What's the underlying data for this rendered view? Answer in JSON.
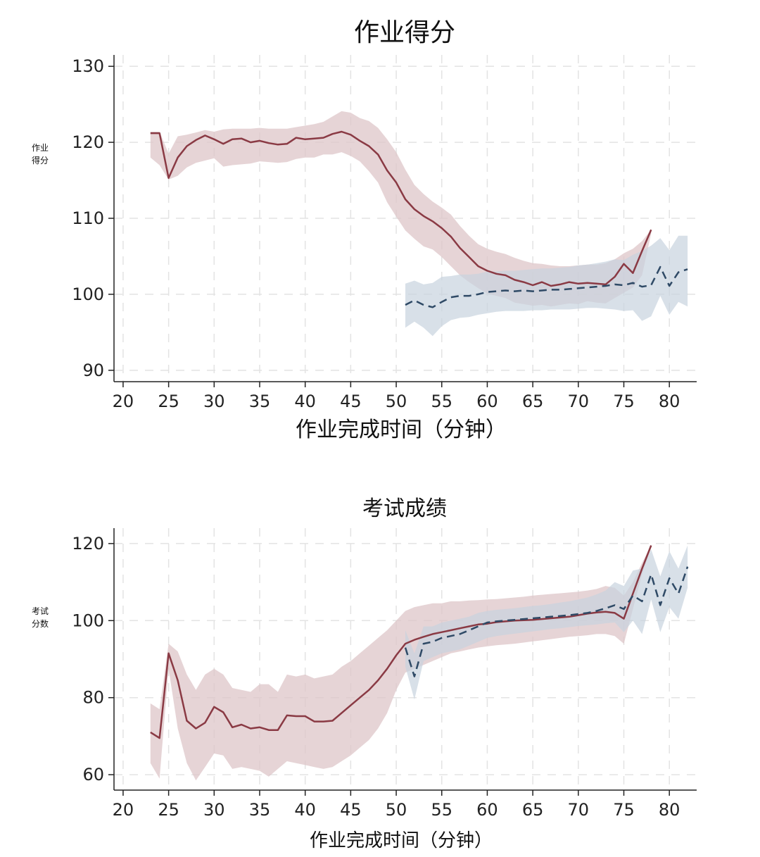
{
  "chart_data": [
    {
      "type": "line",
      "title": "作业得分",
      "ylabel_lines": [
        "作业",
        "得分"
      ],
      "xlabel": "作业完成时间（分钟）",
      "xlim": [
        19,
        83
      ],
      "ylim": [
        88.5,
        131.5
      ],
      "xticks": [
        20,
        25,
        30,
        35,
        40,
        45,
        50,
        55,
        60,
        65,
        70,
        75,
        80
      ],
      "yticks": [
        90,
        100,
        110,
        120,
        130
      ],
      "colors": {
        "series_a": "#8a3a44",
        "series_a_band": "#ddc6c8",
        "series_b": "#2f4a66",
        "series_b_band": "#c7d3de"
      },
      "series": [
        {
          "style": "solid",
          "x": [
            23,
            24,
            25,
            26,
            27,
            28,
            29,
            30,
            31,
            32,
            33,
            34,
            35,
            36,
            37,
            38,
            39,
            40,
            41,
            42,
            43,
            44,
            45,
            46,
            47,
            48,
            49,
            50,
            51,
            52,
            53,
            54,
            55,
            56,
            57,
            58,
            59,
            60,
            61,
            62,
            63,
            64,
            65,
            66,
            67,
            68,
            69,
            70,
            71,
            72,
            73,
            74,
            75,
            76,
            77,
            78
          ],
          "y": [
            121.2,
            121.2,
            115.3,
            118,
            119.5,
            120.3,
            120.9,
            120.4,
            119.8,
            120.4,
            120.5,
            120.0,
            120.2,
            119.9,
            119.7,
            119.8,
            120.6,
            120.4,
            120.5,
            120.6,
            121.1,
            121.4,
            121.0,
            120.2,
            119.5,
            118.4,
            116.3,
            114.7,
            112.5,
            111.2,
            110.3,
            109.6,
            108.7,
            107.6,
            106.1,
            104.9,
            103.7,
            103.1,
            102.7,
            102.5,
            101.9,
            101.6,
            101.2,
            101.6,
            101.1,
            101.3,
            101.6,
            101.4,
            101.5,
            101.4,
            101.3,
            102.3,
            104.0,
            102.8,
            105.7,
            108.5
          ],
          "upper": [
            121.4,
            121.4,
            118.5,
            120.8,
            121.0,
            121.3,
            121.6,
            121.4,
            121.7,
            121.8,
            121.8,
            121.8,
            121.9,
            121.8,
            121.8,
            121.8,
            122.0,
            122.2,
            122.4,
            122.7,
            123.4,
            124.1,
            123.9,
            123.2,
            122.8,
            121.9,
            120.4,
            118.7,
            116.4,
            114.4,
            113.2,
            112.2,
            111.4,
            110.5,
            109.0,
            107.7,
            106.6,
            106.0,
            105.6,
            105.3,
            104.8,
            104.4,
            104.1,
            104.0,
            103.8,
            103.7,
            103.7,
            103.8,
            103.9,
            103.9,
            104.1,
            104.6,
            105.4,
            106.0,
            107.0,
            108.5
          ],
          "lower": [
            118.0,
            117.0,
            115.1,
            115.6,
            116.7,
            117.3,
            117.6,
            117.9,
            116.8,
            117.0,
            117.1,
            117.2,
            117.5,
            117.4,
            117.3,
            117.4,
            117.8,
            118.0,
            118.0,
            118.4,
            118.4,
            118.7,
            118.2,
            117.5,
            116.2,
            114.7,
            112.1,
            110.2,
            108.4,
            107.3,
            106.3,
            105.9,
            104.9,
            103.7,
            102.5,
            101.6,
            100.8,
            100.1,
            99.8,
            99.5,
            98.9,
            98.7,
            98.5,
            98.6,
            98.4,
            98.6,
            98.8,
            98.7,
            99.1,
            98.9,
            98.8,
            99.5,
            100.2,
            100.9,
            102.5,
            108.0
          ]
        },
        {
          "style": "dashed",
          "x": [
            51,
            52,
            53,
            54,
            55,
            56,
            57,
            58,
            59,
            60,
            61,
            62,
            63,
            64,
            65,
            66,
            67,
            68,
            69,
            70,
            71,
            72,
            73,
            74,
            75,
            76,
            77,
            78,
            79,
            80,
            81,
            82
          ],
          "y": [
            98.6,
            99.2,
            98.6,
            98.3,
            99.0,
            99.6,
            99.8,
            99.8,
            100.0,
            100.3,
            100.4,
            100.5,
            100.4,
            100.5,
            100.4,
            100.5,
            100.6,
            100.6,
            100.7,
            100.8,
            100.9,
            101.0,
            101.1,
            101.3,
            101.2,
            101.5,
            101.0,
            101.2,
            103.6,
            101.1,
            102.9,
            103.3
          ],
          "upper": [
            101.4,
            101.8,
            101.3,
            101.5,
            102.3,
            102.4,
            102.6,
            102.6,
            102.7,
            103.0,
            103.0,
            103.1,
            103.1,
            103.2,
            103.3,
            103.4,
            103.4,
            103.5,
            103.6,
            103.8,
            103.9,
            104.1,
            104.3,
            104.6,
            104.5,
            105.2,
            105.7,
            106.4,
            107.4,
            105.8,
            107.7,
            107.7
          ],
          "lower": [
            95.6,
            96.4,
            95.6,
            94.5,
            95.8,
            96.6,
            96.9,
            97.0,
            97.3,
            97.5,
            97.7,
            97.8,
            97.8,
            97.8,
            97.9,
            97.9,
            98.0,
            98.0,
            98.0,
            98.1,
            98.2,
            98.2,
            98.1,
            98.0,
            97.8,
            97.9,
            96.5,
            97.1,
            99.8,
            97.3,
            99.0,
            98.4
          ]
        }
      ]
    },
    {
      "type": "line",
      "title": "考试成绩",
      "ylabel_lines": [
        "考试",
        "分数"
      ],
      "xlabel": "作业完成时间（分钟）",
      "xlim": [
        19,
        83
      ],
      "ylim": [
        56,
        124
      ],
      "xticks": [
        20,
        25,
        30,
        35,
        40,
        45,
        50,
        55,
        60,
        65,
        70,
        75,
        80
      ],
      "yticks": [
        60,
        80,
        100,
        120
      ],
      "colors": {
        "series_a": "#8a3a44",
        "series_a_band": "#ddc6c8",
        "series_b": "#2f4a66",
        "series_b_band": "#c7d3de"
      },
      "series": [
        {
          "style": "solid",
          "x": [
            23,
            24,
            25,
            26,
            27,
            28,
            29,
            30,
            31,
            32,
            33,
            34,
            35,
            36,
            37,
            38,
            39,
            40,
            41,
            42,
            43,
            44,
            45,
            46,
            47,
            48,
            49,
            50,
            51,
            52,
            53,
            54,
            55,
            56,
            57,
            58,
            59,
            60,
            61,
            62,
            63,
            64,
            65,
            66,
            67,
            68,
            69,
            70,
            71,
            72,
            73,
            74,
            75,
            76,
            77,
            78
          ],
          "y": [
            71.0,
            69.5,
            91.5,
            84.5,
            74.0,
            72.0,
            73.5,
            77.6,
            76.2,
            72.3,
            73.0,
            72.0,
            72.3,
            71.6,
            71.6,
            75.4,
            75.2,
            75.2,
            73.8,
            73.8,
            74.0,
            76.0,
            78.0,
            80.0,
            82.0,
            84.5,
            87.5,
            91.0,
            94.0,
            95.0,
            95.8,
            96.5,
            97.0,
            97.5,
            98.0,
            98.5,
            99.0,
            99.2,
            99.6,
            99.8,
            100.0,
            100.1,
            100.2,
            100.4,
            100.6,
            100.8,
            101.0,
            101.4,
            101.8,
            102.1,
            102.3,
            102.0,
            100.5,
            107.0,
            113.5,
            119.5
          ],
          "upper": [
            78.5,
            77.0,
            94.0,
            92.0,
            86.0,
            82.0,
            86.0,
            87.5,
            86.0,
            82.5,
            82.0,
            81.5,
            83.5,
            83.5,
            81.5,
            86.0,
            85.5,
            86.0,
            85.0,
            85.5,
            86.0,
            88.0,
            89.5,
            91.5,
            93.5,
            95.5,
            97.5,
            100.0,
            102.5,
            103.5,
            104.0,
            104.5,
            104.5,
            105.0,
            105.0,
            105.2,
            105.3,
            105.5,
            105.6,
            105.8,
            106.0,
            106.2,
            106.5,
            106.7,
            106.9,
            107.1,
            107.3,
            107.5,
            107.8,
            108.2,
            109.0,
            108.5,
            106.5,
            110.0,
            115.0,
            119.5
          ],
          "lower": [
            63.0,
            59.0,
            87.5,
            72.0,
            63.0,
            58.5,
            62.0,
            65.5,
            65.0,
            61.5,
            62.0,
            61.5,
            61.0,
            59.5,
            61.5,
            63.5,
            63.0,
            62.5,
            62.0,
            61.5,
            62.0,
            63.5,
            65.0,
            67.0,
            69.0,
            72.0,
            76.0,
            82.0,
            86.5,
            87.5,
            88.5,
            89.5,
            90.5,
            91.5,
            92.0,
            92.5,
            93.0,
            93.3,
            93.6,
            93.8,
            94.0,
            94.3,
            94.6,
            94.9,
            95.2,
            95.5,
            95.8,
            96.0,
            96.2,
            96.5,
            96.5,
            96.0,
            94.0,
            103.0,
            112.0,
            119.0
          ]
        },
        {
          "style": "dashed",
          "x": [
            51,
            52,
            53,
            54,
            55,
            56,
            57,
            58,
            59,
            60,
            61,
            62,
            63,
            64,
            65,
            66,
            67,
            68,
            69,
            70,
            71,
            72,
            73,
            74,
            75,
            76,
            77,
            78,
            79,
            80,
            81,
            82
          ],
          "y": [
            93.0,
            85.5,
            94.0,
            94.5,
            95.5,
            96.0,
            96.5,
            97.5,
            98.5,
            99.5,
            99.8,
            100.0,
            100.2,
            100.4,
            100.6,
            100.8,
            101.0,
            101.2,
            101.4,
            101.7,
            102.0,
            102.5,
            103.2,
            104.0,
            103.0,
            106.5,
            105.0,
            112.0,
            104.0,
            111.0,
            107.0,
            114.0
          ],
          "upper": [
            97.5,
            91.5,
            98.5,
            98.5,
            99.5,
            100.0,
            100.5,
            101.0,
            102.0,
            102.5,
            102.8,
            103.0,
            103.2,
            103.5,
            103.8,
            104.0,
            104.3,
            104.7,
            105.0,
            105.5,
            106.0,
            106.8,
            107.8,
            110.0,
            109.0,
            113.0,
            113.5,
            118.5,
            111.5,
            118.0,
            113.5,
            119.5
          ],
          "lower": [
            88.0,
            79.5,
            89.5,
            90.5,
            91.5,
            92.0,
            92.5,
            93.5,
            94.5,
            95.5,
            96.0,
            96.3,
            96.6,
            96.9,
            97.2,
            97.5,
            97.8,
            98.0,
            98.3,
            98.6,
            98.8,
            99.0,
            99.3,
            99.5,
            97.0,
            100.0,
            96.5,
            105.5,
            97.0,
            103.5,
            100.5,
            108.5
          ]
        }
      ]
    }
  ]
}
